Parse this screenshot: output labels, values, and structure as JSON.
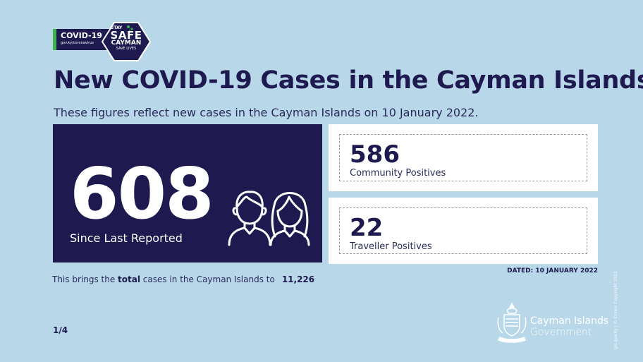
{
  "badge": {
    "covid_label": "COVID-19",
    "covid_url": "gov.ky/coronavirus",
    "stay": "STAY",
    "safe": "SAFE",
    "cayman": "CAYMAN",
    "save_lives": "SAVE LIVES",
    "accent_green": "#3fb34f"
  },
  "title": "New COVID-19 Cases in the Cayman Islands",
  "subtitle": "These figures reflect new cases in the Cayman Islands on 10 January 2022.",
  "main_stat": {
    "value": "608",
    "label": "Since Last Reported",
    "icon": "people-icon"
  },
  "stats": [
    {
      "value": "586",
      "label": "Community Positives"
    },
    {
      "value": "22",
      "label": "Traveller Positives"
    }
  ],
  "dated": "DATED: 10 JANUARY 2022",
  "total": {
    "prefix": "This brings the ",
    "emphasis": "total",
    "suffix": " cases in the Cayman Islands to",
    "value": "11,226"
  },
  "page": "1/4",
  "government": {
    "name": "Cayman Islands",
    "sub": "Government",
    "icon": "crest-icon"
  },
  "credit": "gis.gov.ky | © Crown Copyright 2022",
  "colors": {
    "background": "#b8d8ea",
    "navy": "#1e1a4f",
    "white": "#ffffff"
  }
}
